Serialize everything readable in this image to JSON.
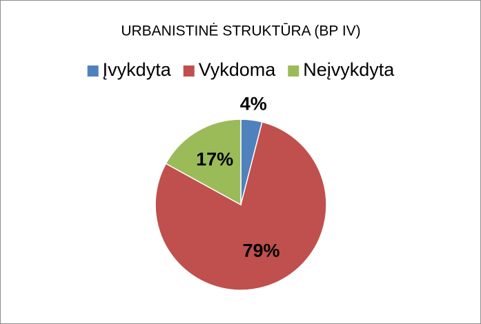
{
  "chart_data": {
    "type": "pie",
    "title": "URBANISTINĖ STRUKTŪRA (BP IV)",
    "categories": [
      "Įvykdyta",
      "Vykdoma",
      "Neįvykdyta"
    ],
    "values": [
      4,
      79,
      17
    ],
    "value_labels": [
      "4%",
      "79%",
      "17%"
    ],
    "colors": [
      "#4f81bd",
      "#c0504d",
      "#9bbb59"
    ],
    "legend": "top"
  }
}
